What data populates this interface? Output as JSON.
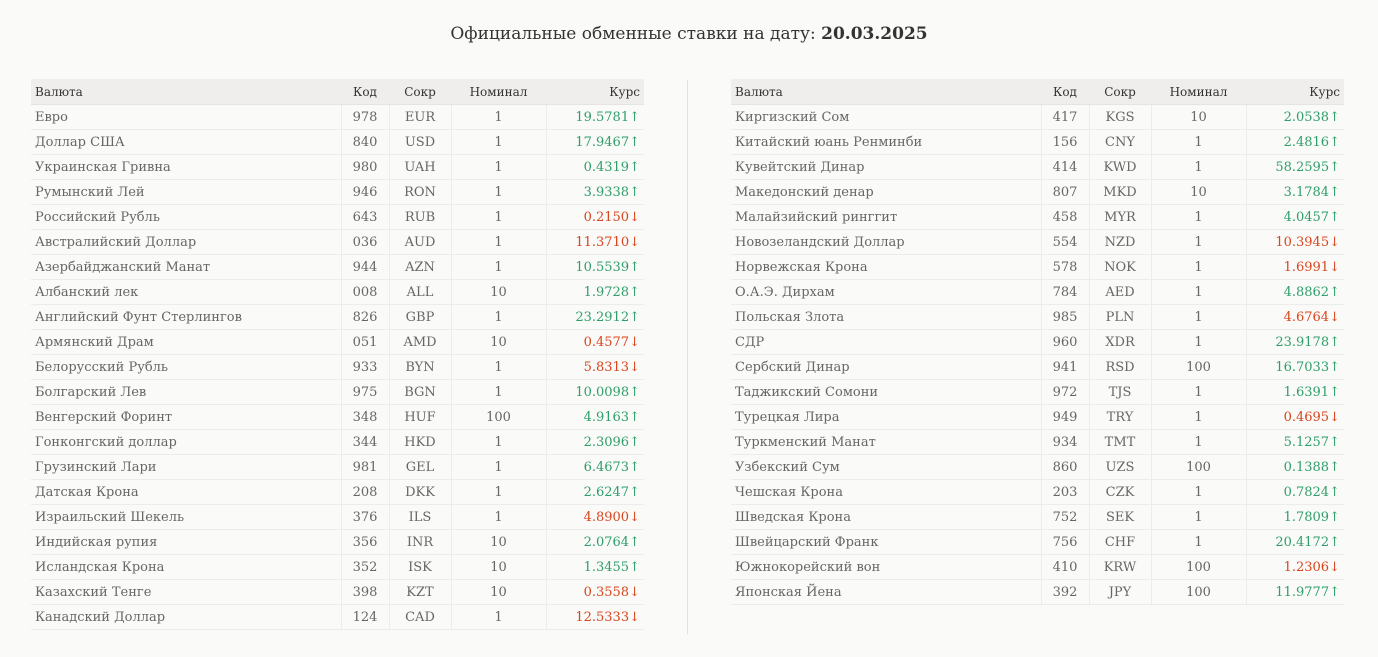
{
  "title": {
    "prefix": "Официальные обменные ставки на дату:",
    "date": "20.03.2025"
  },
  "columns": {
    "currency": "Валюта",
    "code": "Код",
    "abbr": "Сокр",
    "nominal": "Номинал",
    "rate": "Курс"
  },
  "colors": {
    "up": "#2f9e6a",
    "down": "#d9451e"
  },
  "left_table": [
    {
      "name": "Евро",
      "code": "978",
      "abbr": "EUR",
      "nominal": "1",
      "rate": "19.5781",
      "dir": "up"
    },
    {
      "name": "Доллар США",
      "code": "840",
      "abbr": "USD",
      "nominal": "1",
      "rate": "17.9467",
      "dir": "up"
    },
    {
      "name": "Украинская Гривна",
      "code": "980",
      "abbr": "UAH",
      "nominal": "1",
      "rate": "0.4319",
      "dir": "up"
    },
    {
      "name": "Румынский Лей",
      "code": "946",
      "abbr": "RON",
      "nominal": "1",
      "rate": "3.9338",
      "dir": "up"
    },
    {
      "name": "Российский Рубль",
      "code": "643",
      "abbr": "RUB",
      "nominal": "1",
      "rate": "0.2150",
      "dir": "down"
    },
    {
      "name": "Австралийский Доллар",
      "code": "036",
      "abbr": "AUD",
      "nominal": "1",
      "rate": "11.3710",
      "dir": "down"
    },
    {
      "name": "Азербайджанский Манат",
      "code": "944",
      "abbr": "AZN",
      "nominal": "1",
      "rate": "10.5539",
      "dir": "up"
    },
    {
      "name": "Албанский лек",
      "code": "008",
      "abbr": "ALL",
      "nominal": "10",
      "rate": "1.9728",
      "dir": "up"
    },
    {
      "name": "Английский Фунт Стерлингов",
      "code": "826",
      "abbr": "GBP",
      "nominal": "1",
      "rate": "23.2912",
      "dir": "up"
    },
    {
      "name": "Армянский Драм",
      "code": "051",
      "abbr": "AMD",
      "nominal": "10",
      "rate": "0.4577",
      "dir": "down"
    },
    {
      "name": "Белорусский Рубль",
      "code": "933",
      "abbr": "BYN",
      "nominal": "1",
      "rate": "5.8313",
      "dir": "down"
    },
    {
      "name": "Болгарский Лев",
      "code": "975",
      "abbr": "BGN",
      "nominal": "1",
      "rate": "10.0098",
      "dir": "up"
    },
    {
      "name": "Венгерский Форинт",
      "code": "348",
      "abbr": "HUF",
      "nominal": "100",
      "rate": "4.9163",
      "dir": "up"
    },
    {
      "name": "Гонконгский доллар",
      "code": "344",
      "abbr": "HKD",
      "nominal": "1",
      "rate": "2.3096",
      "dir": "up"
    },
    {
      "name": "Грузинский Лари",
      "code": "981",
      "abbr": "GEL",
      "nominal": "1",
      "rate": "6.4673",
      "dir": "up"
    },
    {
      "name": "Датская Крона",
      "code": "208",
      "abbr": "DKK",
      "nominal": "1",
      "rate": "2.6247",
      "dir": "up"
    },
    {
      "name": "Израильский Шекель",
      "code": "376",
      "abbr": "ILS",
      "nominal": "1",
      "rate": "4.8900",
      "dir": "down"
    },
    {
      "name": "Индийская рупия",
      "code": "356",
      "abbr": "INR",
      "nominal": "10",
      "rate": "2.0764",
      "dir": "up"
    },
    {
      "name": "Исландская Крона",
      "code": "352",
      "abbr": "ISK",
      "nominal": "10",
      "rate": "1.3455",
      "dir": "up"
    },
    {
      "name": "Казахский Тенге",
      "code": "398",
      "abbr": "KZT",
      "nominal": "10",
      "rate": "0.3558",
      "dir": "down"
    },
    {
      "name": "Канадский Доллар",
      "code": "124",
      "abbr": "CAD",
      "nominal": "1",
      "rate": "12.5333",
      "dir": "down"
    }
  ],
  "right_table": [
    {
      "name": "Киргизский Сом",
      "code": "417",
      "abbr": "KGS",
      "nominal": "10",
      "rate": "2.0538",
      "dir": "up"
    },
    {
      "name": "Китайский юань Ренминби",
      "code": "156",
      "abbr": "CNY",
      "nominal": "1",
      "rate": "2.4816",
      "dir": "up"
    },
    {
      "name": "Кувейтский Динар",
      "code": "414",
      "abbr": "KWD",
      "nominal": "1",
      "rate": "58.2595",
      "dir": "up"
    },
    {
      "name": "Македонский денар",
      "code": "807",
      "abbr": "MKD",
      "nominal": "10",
      "rate": "3.1784",
      "dir": "up"
    },
    {
      "name": "Малайзийский ринггит",
      "code": "458",
      "abbr": "MYR",
      "nominal": "1",
      "rate": "4.0457",
      "dir": "up"
    },
    {
      "name": "Новозеландский Доллар",
      "code": "554",
      "abbr": "NZD",
      "nominal": "1",
      "rate": "10.3945",
      "dir": "down"
    },
    {
      "name": "Норвежская Крона",
      "code": "578",
      "abbr": "NOK",
      "nominal": "1",
      "rate": "1.6991",
      "dir": "down"
    },
    {
      "name": "О.А.Э. Дирхам",
      "code": "784",
      "abbr": "AED",
      "nominal": "1",
      "rate": "4.8862",
      "dir": "up"
    },
    {
      "name": "Польская Злота",
      "code": "985",
      "abbr": "PLN",
      "nominal": "1",
      "rate": "4.6764",
      "dir": "down"
    },
    {
      "name": "СДР",
      "code": "960",
      "abbr": "XDR",
      "nominal": "1",
      "rate": "23.9178",
      "dir": "up"
    },
    {
      "name": "Сербский Динар",
      "code": "941",
      "abbr": "RSD",
      "nominal": "100",
      "rate": "16.7033",
      "dir": "up"
    },
    {
      "name": "Таджикский Сомони",
      "code": "972",
      "abbr": "TJS",
      "nominal": "1",
      "rate": "1.6391",
      "dir": "up"
    },
    {
      "name": "Турецкая Лира",
      "code": "949",
      "abbr": "TRY",
      "nominal": "1",
      "rate": "0.4695",
      "dir": "down"
    },
    {
      "name": "Туркменский Манат",
      "code": "934",
      "abbr": "TMT",
      "nominal": "1",
      "rate": "5.1257",
      "dir": "up"
    },
    {
      "name": "Узбекский Сум",
      "code": "860",
      "abbr": "UZS",
      "nominal": "100",
      "rate": "0.1388",
      "dir": "up"
    },
    {
      "name": "Чешская Крона",
      "code": "203",
      "abbr": "CZK",
      "nominal": "1",
      "rate": "0.7824",
      "dir": "up"
    },
    {
      "name": "Шведская Крона",
      "code": "752",
      "abbr": "SEK",
      "nominal": "1",
      "rate": "1.7809",
      "dir": "up"
    },
    {
      "name": "Швейцарский Франк",
      "code": "756",
      "abbr": "CHF",
      "nominal": "1",
      "rate": "20.4172",
      "dir": "up"
    },
    {
      "name": "Южнокорейский вон",
      "code": "410",
      "abbr": "KRW",
      "nominal": "100",
      "rate": "1.2306",
      "dir": "down"
    },
    {
      "name": "Японская Йена",
      "code": "392",
      "abbr": "JPY",
      "nominal": "100",
      "rate": "11.9777",
      "dir": "up"
    }
  ]
}
